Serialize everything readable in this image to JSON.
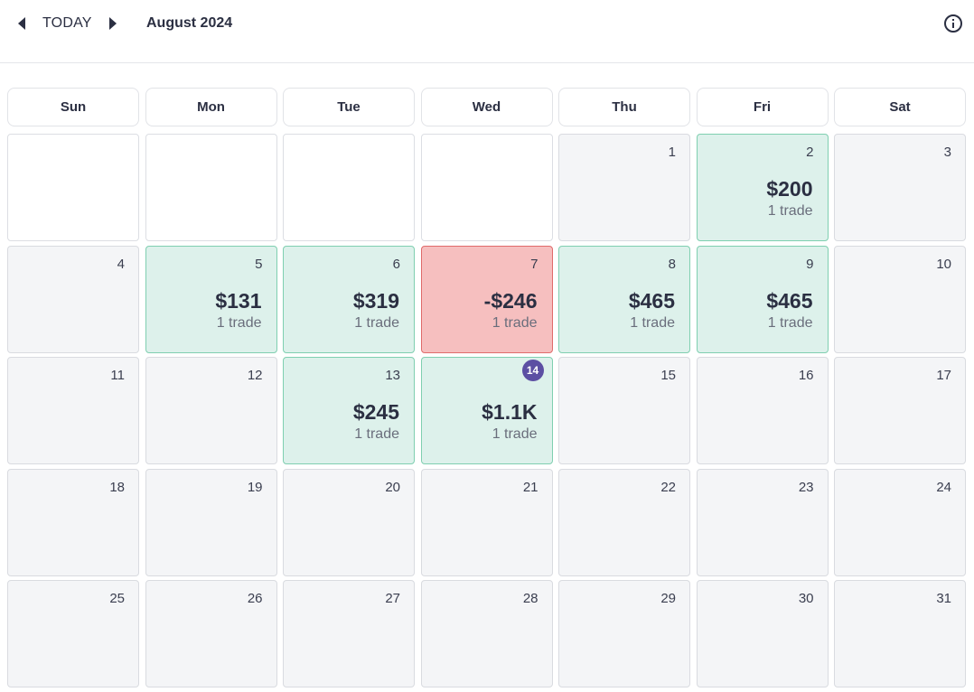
{
  "header": {
    "today_label": "TODAY",
    "month_title": "August 2024",
    "icons": {
      "prev": "chevron-left-icon",
      "next": "chevron-right-icon",
      "info": "info-icon"
    }
  },
  "weekdays": [
    "Sun",
    "Mon",
    "Tue",
    "Wed",
    "Thu",
    "Fri",
    "Sat"
  ],
  "colors": {
    "profit_bg": "#ddf1eb",
    "loss_bg": "#f6bfbf",
    "today_badge": "#5c4fa3"
  },
  "days": [
    {
      "day": ""
    },
    {
      "day": ""
    },
    {
      "day": ""
    },
    {
      "day": ""
    },
    {
      "day": "1"
    },
    {
      "day": "2",
      "pnl": "$200",
      "trades": "1 trade",
      "status": "profit"
    },
    {
      "day": "3"
    },
    {
      "day": "4"
    },
    {
      "day": "5",
      "pnl": "$131",
      "trades": "1 trade",
      "status": "profit"
    },
    {
      "day": "6",
      "pnl": "$319",
      "trades": "1 trade",
      "status": "profit"
    },
    {
      "day": "7",
      "pnl": "-$246",
      "trades": "1 trade",
      "status": "loss"
    },
    {
      "day": "8",
      "pnl": "$465",
      "trades": "1 trade",
      "status": "profit"
    },
    {
      "day": "9",
      "pnl": "$465",
      "trades": "1 trade",
      "status": "profit"
    },
    {
      "day": "10"
    },
    {
      "day": "11"
    },
    {
      "day": "12"
    },
    {
      "day": "13",
      "pnl": "$245",
      "trades": "1 trade",
      "status": "profit"
    },
    {
      "day": "14",
      "pnl": "$1.1K",
      "trades": "1 trade",
      "status": "profit",
      "today": true
    },
    {
      "day": "15"
    },
    {
      "day": "16"
    },
    {
      "day": "17"
    },
    {
      "day": "18"
    },
    {
      "day": "19"
    },
    {
      "day": "20"
    },
    {
      "day": "21"
    },
    {
      "day": "22"
    },
    {
      "day": "23"
    },
    {
      "day": "24"
    },
    {
      "day": "25"
    },
    {
      "day": "26"
    },
    {
      "day": "27"
    },
    {
      "day": "28"
    },
    {
      "day": "29"
    },
    {
      "day": "30"
    },
    {
      "day": "31"
    }
  ]
}
